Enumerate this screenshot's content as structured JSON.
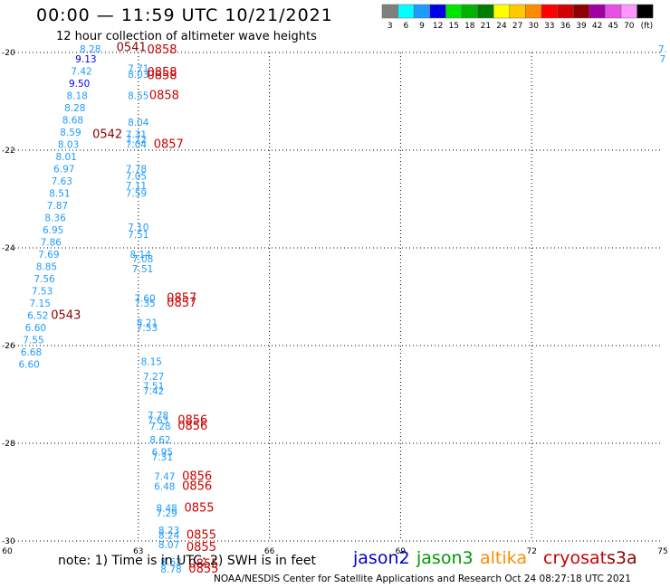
{
  "header": {
    "title": "00:00 — 11:59 UTC 10/21/2021",
    "subtitle": "12 hour collection of altimeter wave heights"
  },
  "colorbar": {
    "labels": [
      "3",
      "6",
      "9",
      "12",
      "15",
      "18",
      "21",
      "24",
      "27",
      "30",
      "33",
      "36",
      "39",
      "42",
      "45",
      "70",
      "(ft)"
    ],
    "colors": [
      "#7f7f7f",
      "#00ffff",
      "#1e9bff",
      "#0000e6",
      "#00e600",
      "#00b400",
      "#007d00",
      "#ffff00",
      "#ffc800",
      "#ff8c00",
      "#ff0000",
      "#d20000",
      "#8c0000",
      "#a000a0",
      "#e650e6",
      "#ff96ff",
      "#000000"
    ]
  },
  "footer": {
    "note": "note:  1) Time is in UTC;  2) SWH is in feet",
    "credit": "NOAA/NESDIS Center for Satellite Applications and Research     Oct 24 08:27:18 UTC 2021",
    "satellites": [
      {
        "name": "jason2",
        "color": "#0000cc"
      },
      {
        "name": "jason3",
        "color": "#009900"
      },
      {
        "name": "altika",
        "color": "#ff8c00"
      },
      {
        "name": "cryosat",
        "color": "#cc0000"
      },
      {
        "name": "s3a",
        "color": "#8b0000"
      }
    ]
  },
  "chart_data": {
    "type": "scatter",
    "xlim": [
      60,
      75
    ],
    "ylim": [
      -30,
      -20
    ],
    "xticks": [
      "60",
      "63",
      "66",
      "69",
      "72",
      "75"
    ],
    "yticks": [
      "-20",
      "-22",
      "-24",
      "-26",
      "-28",
      "-30"
    ],
    "grid": true,
    "points": [
      {
        "x": 61.9,
        "y": -20.0,
        "label": "8.28",
        "color": "#1e9bff"
      },
      {
        "x": 61.8,
        "y": -20.2,
        "label": "9.13",
        "color": "#0000e6"
      },
      {
        "x": 61.7,
        "y": -20.45,
        "label": "7.42",
        "color": "#1e9bff"
      },
      {
        "x": 61.65,
        "y": -20.7,
        "label": "9.50",
        "color": "#0000e6"
      },
      {
        "x": 61.6,
        "y": -20.95,
        "label": "8.18",
        "color": "#1e9bff"
      },
      {
        "x": 61.55,
        "y": -21.2,
        "label": "8.28",
        "color": "#1e9bff"
      },
      {
        "x": 61.5,
        "y": -21.45,
        "label": "8.68",
        "color": "#1e9bff"
      },
      {
        "x": 61.45,
        "y": -21.7,
        "label": "8.59",
        "color": "#1e9bff"
      },
      {
        "x": 61.4,
        "y": -21.95,
        "label": "8.03",
        "color": "#1e9bff"
      },
      {
        "x": 61.35,
        "y": -22.2,
        "label": "8.01",
        "color": "#1e9bff"
      },
      {
        "x": 61.3,
        "y": -22.45,
        "label": "6.97",
        "color": "#1e9bff"
      },
      {
        "x": 61.25,
        "y": -22.7,
        "label": "7.63",
        "color": "#1e9bff"
      },
      {
        "x": 61.2,
        "y": -22.95,
        "label": "8.51",
        "color": "#1e9bff"
      },
      {
        "x": 61.15,
        "y": -23.2,
        "label": "7.87",
        "color": "#1e9bff"
      },
      {
        "x": 61.1,
        "y": -23.45,
        "label": "8.36",
        "color": "#1e9bff"
      },
      {
        "x": 61.05,
        "y": -23.7,
        "label": "6.95",
        "color": "#1e9bff"
      },
      {
        "x": 61.0,
        "y": -23.95,
        "label": "7.86",
        "color": "#1e9bff"
      },
      {
        "x": 60.95,
        "y": -24.2,
        "label": "7.69",
        "color": "#1e9bff"
      },
      {
        "x": 60.9,
        "y": -24.45,
        "label": "8.85",
        "color": "#1e9bff"
      },
      {
        "x": 60.85,
        "y": -24.7,
        "label": "7.56",
        "color": "#1e9bff"
      },
      {
        "x": 60.8,
        "y": -24.95,
        "label": "7.53",
        "color": "#1e9bff"
      },
      {
        "x": 60.75,
        "y": -25.2,
        "label": "7.15",
        "color": "#1e9bff"
      },
      {
        "x": 60.7,
        "y": -25.45,
        "label": "6.52",
        "color": "#1e9bff"
      },
      {
        "x": 60.65,
        "y": -25.7,
        "label": "6.60",
        "color": "#1e9bff"
      },
      {
        "x": 60.6,
        "y": -25.95,
        "label": "7.55",
        "color": "#1e9bff"
      },
      {
        "x": 60.55,
        "y": -26.2,
        "label": "6.68",
        "color": "#1e9bff"
      },
      {
        "x": 60.5,
        "y": -26.45,
        "label": "6.60",
        "color": "#1e9bff"
      },
      {
        "x": 63.0,
        "y": -20.4,
        "label": "7.71",
        "color": "#1e9bff"
      },
      {
        "x": 63.0,
        "y": -20.52,
        "label": "8.03",
        "color": "#1e9bff"
      },
      {
        "x": 63.0,
        "y": -20.95,
        "label": "8.55",
        "color": "#1e9bff"
      },
      {
        "x": 63.0,
        "y": -21.5,
        "label": "8.04",
        "color": "#1e9bff"
      },
      {
        "x": 62.95,
        "y": -21.75,
        "label": "7.31",
        "color": "#1e9bff"
      },
      {
        "x": 62.95,
        "y": -21.85,
        "label": "7.72",
        "color": "#1e9bff"
      },
      {
        "x": 62.95,
        "y": -21.95,
        "label": "7.04",
        "color": "#1e9bff"
      },
      {
        "x": 62.95,
        "y": -22.45,
        "label": "7.78",
        "color": "#1e9bff"
      },
      {
        "x": 62.95,
        "y": -22.6,
        "label": "7.05",
        "color": "#1e9bff"
      },
      {
        "x": 62.95,
        "y": -22.8,
        "label": "7.11",
        "color": "#1e9bff"
      },
      {
        "x": 62.95,
        "y": -22.95,
        "label": "7.59",
        "color": "#1e9bff"
      },
      {
        "x": 63.0,
        "y": -23.65,
        "label": "7.10",
        "color": "#1e9bff"
      },
      {
        "x": 63.0,
        "y": -23.8,
        "label": "7.51",
        "color": "#1e9bff"
      },
      {
        "x": 63.05,
        "y": -24.2,
        "label": "8.14",
        "color": "#1e9bff"
      },
      {
        "x": 63.1,
        "y": -24.3,
        "label": "7.08",
        "color": "#1e9bff"
      },
      {
        "x": 63.1,
        "y": -24.5,
        "label": "7.51",
        "color": "#1e9bff"
      },
      {
        "x": 63.15,
        "y": -25.1,
        "label": "7.60",
        "color": "#1e9bff"
      },
      {
        "x": 63.15,
        "y": -25.2,
        "label": "7.35",
        "color": "#1e9bff"
      },
      {
        "x": 63.2,
        "y": -25.6,
        "label": "8.21",
        "color": "#1e9bff"
      },
      {
        "x": 63.2,
        "y": -25.7,
        "label": "7.53",
        "color": "#1e9bff"
      },
      {
        "x": 63.3,
        "y": -26.4,
        "label": "8.15",
        "color": "#1e9bff"
      },
      {
        "x": 63.35,
        "y": -26.7,
        "label": "7.27",
        "color": "#1e9bff"
      },
      {
        "x": 63.35,
        "y": -26.9,
        "label": "7.51",
        "color": "#1e9bff"
      },
      {
        "x": 63.35,
        "y": -27.0,
        "label": "7.42",
        "color": "#1e9bff"
      },
      {
        "x": 63.45,
        "y": -27.5,
        "label": "7.78",
        "color": "#1e9bff"
      },
      {
        "x": 63.45,
        "y": -27.6,
        "label": "7.63",
        "color": "#1e9bff"
      },
      {
        "x": 63.5,
        "y": -27.72,
        "label": "7.28",
        "color": "#1e9bff"
      },
      {
        "x": 63.5,
        "y": -28.0,
        "label": "8.62",
        "color": "#1e9bff"
      },
      {
        "x": 63.55,
        "y": -28.25,
        "label": "6.95",
        "color": "#1e9bff"
      },
      {
        "x": 63.55,
        "y": -28.35,
        "label": "7.31",
        "color": "#1e9bff"
      },
      {
        "x": 63.6,
        "y": -28.75,
        "label": "7.47",
        "color": "#1e9bff"
      },
      {
        "x": 63.6,
        "y": -28.95,
        "label": "6.48",
        "color": "#1e9bff"
      },
      {
        "x": 63.65,
        "y": -29.4,
        "label": "8.48",
        "color": "#1e9bff"
      },
      {
        "x": 63.65,
        "y": -29.5,
        "label": "7.29",
        "color": "#1e9bff"
      },
      {
        "x": 63.7,
        "y": -29.85,
        "label": "8.23",
        "color": "#1e9bff"
      },
      {
        "x": 63.7,
        "y": -29.95,
        "label": "8.24",
        "color": "#1e9bff"
      },
      {
        "x": 63.7,
        "y": -30.15,
        "label": "8.07",
        "color": "#1e9bff"
      },
      {
        "x": 63.75,
        "y": -30.5,
        "label": "8.62",
        "color": "#1e9bff"
      },
      {
        "x": 63.75,
        "y": -30.65,
        "label": "8.78",
        "color": "#1e9bff"
      },
      {
        "x": 75.0,
        "y": -20.0,
        "label": "7.",
        "color": "#1e9bff"
      },
      {
        "x": 75.0,
        "y": -20.2,
        "label": "7",
        "color": "#1e9bff"
      }
    ],
    "time_labels": [
      {
        "x": 62.5,
        "y": -19.97,
        "label": "0541",
        "satellite": "s3a",
        "color": "#8b0000"
      },
      {
        "x": 63.2,
        "y": -20.02,
        "label": "0858",
        "satellite": "cryosat",
        "color": "#cc0000"
      },
      {
        "x": 63.2,
        "y": -20.48,
        "label": "0858",
        "satellite": "cryosat",
        "color": "#cc0000"
      },
      {
        "x": 63.2,
        "y": -20.55,
        "label": "0858",
        "satellite": "cryosat",
        "color": "#cc0000"
      },
      {
        "x": 63.25,
        "y": -20.95,
        "label": "0858",
        "satellite": "cryosat",
        "color": "#cc0000"
      },
      {
        "x": 61.95,
        "y": -21.75,
        "label": "0542",
        "satellite": "s3a",
        "color": "#8b0000"
      },
      {
        "x": 63.35,
        "y": -21.95,
        "label": "0857",
        "satellite": "cryosat",
        "color": "#cc0000"
      },
      {
        "x": 61.0,
        "y": -25.45,
        "label": "0543",
        "satellite": "s3a",
        "color": "#8b0000"
      },
      {
        "x": 63.65,
        "y": -25.1,
        "label": "0857",
        "satellite": "cryosat",
        "color": "#cc0000"
      },
      {
        "x": 63.65,
        "y": -25.2,
        "label": "0857",
        "satellite": "cryosat",
        "color": "#cc0000"
      },
      {
        "x": 63.9,
        "y": -27.6,
        "label": "0856",
        "satellite": "cryosat",
        "color": "#cc0000"
      },
      {
        "x": 63.9,
        "y": -27.72,
        "label": "0856",
        "satellite": "cryosat",
        "color": "#cc0000"
      },
      {
        "x": 64.0,
        "y": -28.75,
        "label": "0856",
        "satellite": "cryosat",
        "color": "#cc0000"
      },
      {
        "x": 64.0,
        "y": -28.95,
        "label": "0856",
        "satellite": "cryosat",
        "color": "#cc0000"
      },
      {
        "x": 64.05,
        "y": -29.4,
        "label": "0855",
        "satellite": "cryosat",
        "color": "#cc0000"
      },
      {
        "x": 64.1,
        "y": -29.95,
        "label": "0855",
        "satellite": "cryosat",
        "color": "#cc0000"
      },
      {
        "x": 64.1,
        "y": -30.2,
        "label": "0855",
        "satellite": "cryosat",
        "color": "#cc0000"
      },
      {
        "x": 64.15,
        "y": -30.55,
        "label": "0855",
        "satellite": "cryosat",
        "color": "#cc0000"
      },
      {
        "x": 64.15,
        "y": -30.65,
        "label": "0855",
        "satellite": "cryosat",
        "color": "#cc0000"
      }
    ]
  }
}
